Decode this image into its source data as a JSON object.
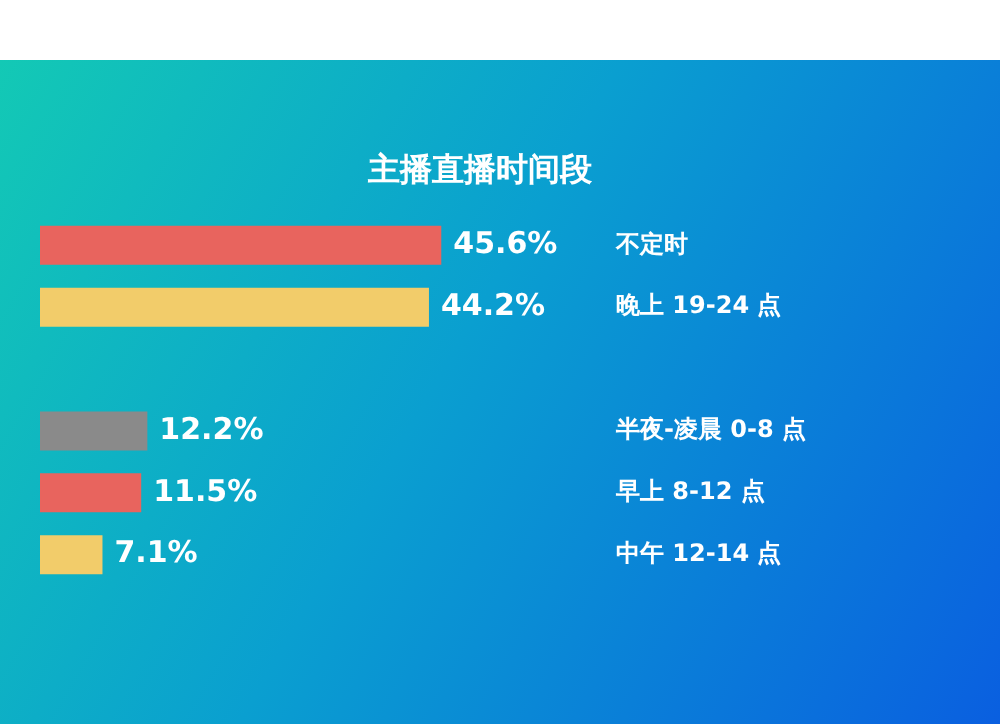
{
  "chart_data": {
    "type": "bar",
    "orientation": "horizontal",
    "title": "主播直播时间段",
    "categories": [
      "不定时",
      "晚上 19-24 点",
      null,
      "半夜-凌晨 0-8 点",
      "早上 8-12 点",
      "中午 12-14 点"
    ],
    "values": [
      45.6,
      44.2,
      null,
      12.2,
      11.5,
      7.1
    ],
    "value_labels": [
      "45.6%",
      "44.2%",
      null,
      "12.2%",
      "11.5%",
      "7.1%"
    ],
    "colors": [
      "#e8645e",
      "#f2cc6a",
      "#8a8a8a",
      "#8a8a8a",
      "#e8645e",
      "#f2cc6a"
    ],
    "legend": false
  }
}
